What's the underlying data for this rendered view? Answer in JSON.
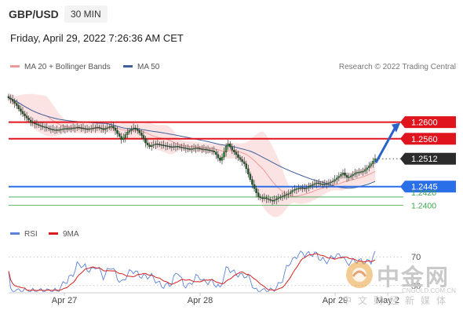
{
  "header": {
    "pair": "GBP/USD",
    "timeframe": "30 MIN",
    "timestamp": "Friday, April 29, 2022 7:26:36 AM CET",
    "credit": "Research © 2022 Trading Central"
  },
  "legend": {
    "bollinger": "MA 20 + Bollinger Bands",
    "ma50": "MA 50",
    "rsi": "RSI",
    "nine_ma": "9MA"
  },
  "colors": {
    "resistance": "#e0141c",
    "support": "#2a6ee8",
    "support_green": "#3aa34a",
    "band_fill": "#fbdede",
    "ma20": "#ef9a9a",
    "ma50": "#3f5f9a",
    "candle": "#2e8b3a",
    "rsi_line": "#5b82d6",
    "rsi_ma": "#d62020"
  },
  "watermark": {
    "brand": "中金网",
    "sub": "中文财经新媒体",
    "url": "CNGOLD.COM.CN"
  },
  "chart_data": [
    {
      "type": "candlestick",
      "title": "GBP/USD",
      "x_labels": [
        "Apr 27",
        "Apr 28",
        "Apr 29",
        "May 2"
      ],
      "ylim": [
        1.235,
        1.2705
      ],
      "resistance_levels": [
        1.26,
        1.256
      ],
      "support_levels": [
        1.2445,
        1.242,
        1.24
      ],
      "level_labels": [
        "1.2600",
        "1.2560",
        "1.2512",
        "1.2445",
        "1.2420",
        "1.2400"
      ],
      "current_price": 1.2512,
      "current_price_label": "1.2512",
      "target": 1.26,
      "closes": [
        1.2658,
        1.2655,
        1.265,
        1.2645,
        1.264,
        1.2632,
        1.2626,
        1.262,
        1.2615,
        1.261,
        1.2605,
        1.26,
        1.2598,
        1.2596,
        1.2594,
        1.2592,
        1.259,
        1.2589,
        1.2588,
        1.2586,
        1.2584,
        1.2583,
        1.2582,
        1.2582,
        1.2581,
        1.2582,
        1.2583,
        1.2584,
        1.2585,
        1.2584,
        1.2585,
        1.2585,
        1.2586,
        1.2587,
        1.2588,
        1.2587,
        1.2586,
        1.2585,
        1.2584,
        1.2583,
        1.2584,
        1.2585,
        1.2586,
        1.2587,
        1.2588,
        1.2586,
        1.2584,
        1.2582,
        1.2585,
        1.2587,
        1.2589,
        1.259,
        1.2586,
        1.258,
        1.2572,
        1.2566,
        1.2558,
        1.2562,
        1.257,
        1.2576,
        1.258,
        1.2583,
        1.2586,
        1.2585,
        1.258,
        1.2574,
        1.2568,
        1.256,
        1.255,
        1.2545,
        1.2541,
        1.2544,
        1.2546,
        1.2548,
        1.2547,
        1.2546,
        1.2545,
        1.2544,
        1.2543,
        1.2542,
        1.2541,
        1.254,
        1.2541,
        1.2542,
        1.2541,
        1.254,
        1.2539,
        1.2538,
        1.2537,
        1.2536,
        1.2535,
        1.2536,
        1.2537,
        1.2538,
        1.2537,
        1.2536,
        1.2535,
        1.2535,
        1.2534,
        1.2533,
        1.2532,
        1.2531,
        1.2528,
        1.2522,
        1.2514,
        1.2508,
        1.2516,
        1.2528,
        1.2542,
        1.2548,
        1.254,
        1.2533,
        1.2528,
        1.2522,
        1.2515,
        1.251,
        1.2505,
        1.25,
        1.2488,
        1.2475,
        1.2462,
        1.245,
        1.244,
        1.243,
        1.2421,
        1.2418,
        1.2417,
        1.2418,
        1.2416,
        1.2414,
        1.2412,
        1.241,
        1.2413,
        1.2416,
        1.2418,
        1.242,
        1.2422,
        1.2424,
        1.2426,
        1.2428,
        1.2432,
        1.2436,
        1.2438,
        1.244,
        1.2441,
        1.2442,
        1.2441,
        1.244,
        1.2442,
        1.2445,
        1.2448,
        1.245,
        1.2452,
        1.2454,
        1.2452,
        1.2451,
        1.2451,
        1.2451,
        1.2452,
        1.2454,
        1.2456,
        1.2458,
        1.2462,
        1.2466,
        1.247,
        1.2474,
        1.2478,
        1.2472,
        1.2467,
        1.2468,
        1.2471,
        1.2474,
        1.2477,
        1.2479,
        1.248,
        1.2481,
        1.2482,
        1.2486,
        1.249,
        1.2495,
        1.25,
        1.2506,
        1.2512
      ]
    },
    {
      "type": "line",
      "title": "RSI",
      "y_labels": [
        "70",
        "30"
      ],
      "series": [
        {
          "name": "RSI"
        },
        {
          "name": "9MA"
        }
      ]
    }
  ]
}
